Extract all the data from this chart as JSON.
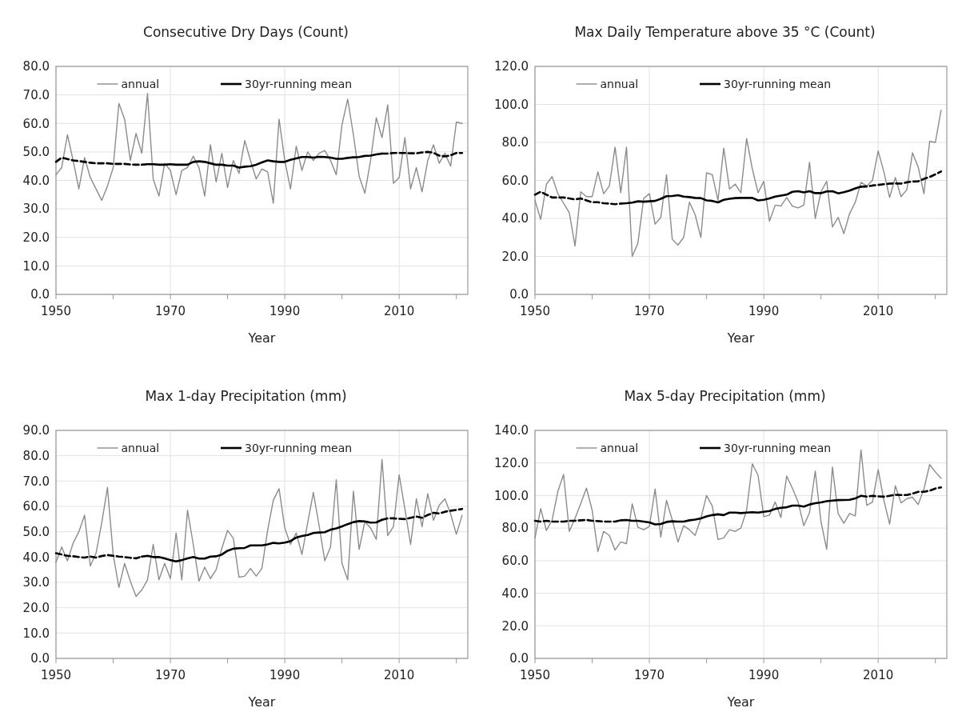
{
  "chart_data": [
    {
      "type": "line",
      "title": "Consecutive Dry Days (Count)",
      "xlabel": "Year",
      "legend": "top",
      "grid": true,
      "line_style": "solid",
      "marker": "none",
      "xlim": [
        1950,
        2022
      ],
      "xticks": [
        1950,
        {
          "value": 1960,
          "label": null
        },
        1970,
        {
          "value": 1980,
          "label": null
        },
        1990,
        {
          "value": 2000,
          "label": null
        },
        2010,
        {
          "value": 2020,
          "label": null
        }
      ],
      "ylim": [
        0,
        80
      ],
      "yticks": [
        {
          "value": 0,
          "label": "0.0"
        },
        {
          "value": 10,
          "label": "10.0"
        },
        {
          "value": 20,
          "label": "20.0"
        },
        {
          "value": 30,
          "label": "30.0"
        },
        {
          "value": 40,
          "label": "40.0"
        },
        {
          "value": 50,
          "label": "50.0"
        },
        {
          "value": 60,
          "label": "60.0"
        },
        {
          "value": 70,
          "label": "70.0"
        },
        {
          "value": 80,
          "label": "80.0"
        }
      ],
      "x": [
        1950,
        1951,
        1952,
        1953,
        1954,
        1955,
        1956,
        1957,
        1958,
        1959,
        1960,
        1961,
        1962,
        1963,
        1964,
        1965,
        1966,
        1967,
        1968,
        1969,
        1970,
        1971,
        1972,
        1973,
        1974,
        1975,
        1976,
        1977,
        1978,
        1979,
        1980,
        1981,
        1982,
        1983,
        1984,
        1985,
        1986,
        1987,
        1988,
        1989,
        1990,
        1991,
        1992,
        1993,
        1994,
        1995,
        1996,
        1997,
        1998,
        1999,
        2000,
        2001,
        2002,
        2003,
        2004,
        2005,
        2006,
        2007,
        2008,
        2009,
        2010,
        2011,
        2012,
        2013,
        2014,
        2015,
        2016,
        2017,
        2018,
        2019,
        2020,
        2021
      ],
      "series": [
        {
          "name": "annual",
          "color": "#8c8c8c",
          "values": [
            42,
            44.5,
            56,
            47,
            37,
            48,
            41,
            37,
            33,
            38,
            44.5,
            67,
            61.5,
            47,
            56.5,
            49.5,
            70.5,
            40.5,
            34.5,
            46,
            43.5,
            35,
            43.5,
            44.5,
            48.5,
            44.5,
            34.5,
            52.5,
            39.5,
            49.5,
            37.5,
            47,
            42.5,
            54,
            47,
            40.5,
            44,
            43,
            32,
            61.5,
            47,
            37,
            52,
            43.5,
            50,
            47,
            49.5,
            50.5,
            47,
            42,
            59.5,
            68.5,
            56,
            41.5,
            35.5,
            47,
            62,
            55,
            66.5,
            39,
            41,
            55,
            37,
            44.5,
            36,
            47,
            52.5,
            46,
            49.5,
            45,
            60.5,
            60
          ]
        },
        {
          "name": "30yr-running mean",
          "color": "#000000",
          "x": [
            1965,
            1966,
            1967,
            1968,
            1969,
            1970,
            1971,
            1972,
            1973,
            1974,
            1975,
            1976,
            1977,
            1978,
            1979,
            1980,
            1981,
            1982,
            1983,
            1984,
            1985,
            1986,
            1987,
            1988,
            1989,
            1990,
            1991,
            1992,
            1993,
            1994,
            1995,
            1996,
            1997,
            1998,
            1999,
            2000,
            2001,
            2002,
            2003,
            2004,
            2005,
            2006,
            2007
          ],
          "values": [
            45.5,
            45.7,
            45.7,
            45.5,
            45.5,
            45.7,
            45.5,
            45.5,
            45.5,
            46.5,
            46.7,
            46.5,
            46,
            45.5,
            45.5,
            45.2,
            45.2,
            44.5,
            44.8,
            45,
            45.5,
            46.3,
            47,
            46.7,
            46.5,
            46.5,
            47.2,
            47.7,
            48.2,
            48.2,
            48,
            48.3,
            48.2,
            48,
            47.6,
            47.6,
            47.9,
            48.1,
            48.2,
            48.6,
            48.7,
            49.1,
            49.4
          ]
        },
        {
          "color": "#000000",
          "line_style": "dashed",
          "x": [
            1950,
            1951,
            1952,
            1953,
            1954,
            1955,
            1956,
            1957,
            1958,
            1959,
            1960,
            1961,
            1962,
            1963,
            1964,
            1965
          ],
          "values": [
            46.5,
            48,
            47.5,
            47,
            46.8,
            46.5,
            46.2,
            46,
            46,
            46,
            45.8,
            45.8,
            45.8,
            45.6,
            45.5,
            45.5
          ]
        },
        {
          "color": "#000000",
          "line_style": "dashed",
          "x": [
            2007,
            2008,
            2009,
            2010,
            2011,
            2012,
            2013,
            2014,
            2015,
            2016,
            2017,
            2018,
            2019,
            2020,
            2021
          ],
          "values": [
            49.4,
            49.4,
            49.6,
            49.6,
            49.6,
            49.5,
            49.5,
            49.8,
            50,
            49.7,
            48.7,
            48.4,
            48.8,
            49.6,
            49.6
          ]
        }
      ]
    },
    {
      "type": "line",
      "title": "Max Daily Temperature above 35 °C (Count)",
      "xlabel": "Year",
      "legend": "top",
      "grid": true,
      "line_style": "solid",
      "marker": "none",
      "xlim": [
        1950,
        2022
      ],
      "xticks": [
        1950,
        {
          "value": 1960,
          "label": null
        },
        1970,
        {
          "value": 1980,
          "label": null
        },
        1990,
        {
          "value": 2000,
          "label": null
        },
        2010,
        {
          "value": 2020,
          "label": null
        }
      ],
      "ylim": [
        0,
        120
      ],
      "yticks": [
        {
          "value": 0,
          "label": "0.0"
        },
        {
          "value": 20,
          "label": "20.0"
        },
        {
          "value": 40,
          "label": "40.0"
        },
        {
          "value": 60,
          "label": "60.0"
        },
        {
          "value": 80,
          "label": "80.0"
        },
        {
          "value": 100,
          "label": "100.0"
        },
        {
          "value": 120,
          "label": "120.0"
        }
      ],
      "x": [
        1950,
        1951,
        1952,
        1953,
        1954,
        1955,
        1956,
        1957,
        1958,
        1959,
        1960,
        1961,
        1962,
        1963,
        1964,
        1965,
        1966,
        1967,
        1968,
        1969,
        1970,
        1971,
        1972,
        1973,
        1974,
        1975,
        1976,
        1977,
        1978,
        1979,
        1980,
        1981,
        1982,
        1983,
        1984,
        1985,
        1986,
        1987,
        1988,
        1989,
        1990,
        1991,
        1992,
        1993,
        1994,
        1995,
        1996,
        1997,
        1998,
        1999,
        2000,
        2001,
        2002,
        2003,
        2004,
        2005,
        2006,
        2007,
        2008,
        2009,
        2010,
        2011,
        2012,
        2013,
        2014,
        2015,
        2016,
        2017,
        2018,
        2019,
        2020,
        2021
      ],
      "series": [
        {
          "name": "annual",
          "color": "#8c8c8c",
          "values": [
            49.5,
            39.5,
            58,
            62,
            53,
            48,
            43,
            25.5,
            54,
            51.5,
            51.5,
            64.5,
            53,
            57,
            77.5,
            53.5,
            77.5,
            20,
            27,
            50.5,
            53,
            37,
            40.5,
            63,
            29,
            26,
            30,
            48.5,
            42,
            30,
            64,
            63,
            49.5,
            77,
            55.5,
            58,
            53.5,
            82,
            66,
            53.5,
            59.5,
            38.5,
            47,
            46.5,
            51,
            46.5,
            45.5,
            47,
            69.5,
            40,
            54,
            59.5,
            35.5,
            40.5,
            32,
            42.5,
            48.5,
            59,
            57,
            60,
            75.5,
            64.5,
            51,
            61.5,
            51.5,
            55,
            74.5,
            67,
            53,
            80.5,
            80,
            97
          ]
        },
        {
          "name": "30yr-running mean",
          "color": "#000000",
          "x": [
            1965,
            1966,
            1967,
            1968,
            1969,
            1970,
            1971,
            1972,
            1973,
            1974,
            1975,
            1976,
            1977,
            1978,
            1979,
            1980,
            1981,
            1982,
            1983,
            1984,
            1985,
            1986,
            1987,
            1988,
            1989,
            1990,
            1991,
            1992,
            1993,
            1994,
            1995,
            1996,
            1997,
            1998,
            1999,
            2000,
            2001,
            2002,
            2003,
            2004,
            2005,
            2006,
            2007
          ],
          "values": [
            47.8,
            48,
            48.3,
            49,
            48.8,
            49,
            49.2,
            50.3,
            51.7,
            51.8,
            52.2,
            51.5,
            51.2,
            50.8,
            50.7,
            49.5,
            49.2,
            48.4,
            49.8,
            50.3,
            50.7,
            50.8,
            50.8,
            50.8,
            49.5,
            49.8,
            50.5,
            51.5,
            52,
            52.5,
            54,
            54.3,
            53.7,
            54.3,
            53.3,
            53.3,
            54.2,
            54.3,
            53.2,
            53.8,
            54.6,
            55.8,
            56.7
          ]
        },
        {
          "color": "#000000",
          "line_style": "dashed",
          "x": [
            1950,
            1951,
            1952,
            1953,
            1954,
            1955,
            1956,
            1957,
            1958,
            1959,
            1960,
            1961,
            1962,
            1963,
            1964,
            1965
          ],
          "values": [
            52.5,
            54,
            52.5,
            51,
            51,
            51,
            50.5,
            50,
            50.5,
            49.5,
            48.5,
            48.5,
            48,
            47.8,
            47.5,
            47.8
          ]
        },
        {
          "color": "#000000",
          "line_style": "dashed",
          "x": [
            2007,
            2008,
            2009,
            2010,
            2011,
            2012,
            2013,
            2014,
            2015,
            2016,
            2017,
            2018,
            2019,
            2020,
            2021
          ],
          "values": [
            56.7,
            56.8,
            57.3,
            57.6,
            58,
            58.3,
            58.4,
            58.3,
            59,
            59.4,
            59.5,
            60.8,
            61.8,
            63.2,
            64.7
          ]
        }
      ]
    },
    {
      "type": "line",
      "title": "Max 1-day Precipitation (mm)",
      "xlabel": "Year",
      "legend": "top",
      "grid": true,
      "line_style": "solid",
      "marker": "none",
      "xlim": [
        1950,
        2022
      ],
      "xticks": [
        1950,
        {
          "value": 1960,
          "label": null
        },
        1970,
        {
          "value": 1980,
          "label": null
        },
        1990,
        {
          "value": 2000,
          "label": null
        },
        2010,
        {
          "value": 2020,
          "label": null
        }
      ],
      "ylim": [
        0,
        90
      ],
      "yticks": [
        {
          "value": 0,
          "label": "0.0"
        },
        {
          "value": 10,
          "label": "10.0"
        },
        {
          "value": 20,
          "label": "20.0"
        },
        {
          "value": 30,
          "label": "30.0"
        },
        {
          "value": 40,
          "label": "40.0"
        },
        {
          "value": 50,
          "label": "50.0"
        },
        {
          "value": 60,
          "label": "60.0"
        },
        {
          "value": 70,
          "label": "70.0"
        },
        {
          "value": 80,
          "label": "80.0"
        },
        {
          "value": 90,
          "label": "90.0"
        }
      ],
      "x": [
        1950,
        1951,
        1952,
        1953,
        1954,
        1955,
        1956,
        1957,
        1958,
        1959,
        1960,
        1961,
        1962,
        1963,
        1964,
        1965,
        1966,
        1967,
        1968,
        1969,
        1970,
        1971,
        1972,
        1973,
        1974,
        1975,
        1976,
        1977,
        1978,
        1979,
        1980,
        1981,
        1982,
        1983,
        1984,
        1985,
        1986,
        1987,
        1988,
        1989,
        1990,
        1991,
        1992,
        1993,
        1994,
        1995,
        1996,
        1997,
        1998,
        1999,
        2000,
        2001,
        2002,
        2003,
        2004,
        2005,
        2006,
        2007,
        2008,
        2009,
        2010,
        2011,
        2012,
        2013,
        2014,
        2015,
        2016,
        2017,
        2018,
        2019,
        2020,
        2021
      ],
      "series": [
        {
          "name": "annual",
          "color": "#8c8c8c",
          "values": [
            38,
            44,
            38.5,
            45.5,
            50,
            56.5,
            36.5,
            41.5,
            53.5,
            67.5,
            41,
            28,
            37.5,
            30.5,
            24.5,
            27,
            31,
            45,
            31,
            37.5,
            31.5,
            49.5,
            31,
            58.5,
            45,
            30.5,
            36,
            31.5,
            35,
            43.5,
            50.5,
            47.5,
            32,
            32.5,
            35.5,
            32.5,
            35.5,
            50.5,
            62.5,
            67,
            51.5,
            45,
            49.5,
            41,
            53.5,
            65.5,
            52.5,
            38.5,
            44,
            70.5,
            37.5,
            31,
            66,
            43,
            54,
            51.5,
            47,
            78.5,
            48.5,
            52,
            72.5,
            59,
            45,
            63,
            52,
            65,
            54.5,
            60.5,
            63,
            57,
            49,
            56.5
          ]
        },
        {
          "name": "30yr-running mean",
          "color": "#000000",
          "x": [
            1965,
            1966,
            1967,
            1968,
            1969,
            1970,
            1971,
            1972,
            1973,
            1974,
            1975,
            1976,
            1977,
            1978,
            1979,
            1980,
            1981,
            1982,
            1983,
            1984,
            1985,
            1986,
            1987,
            1988,
            1989,
            1990,
            1991,
            1992,
            1993,
            1994,
            1995,
            1996,
            1997,
            1998,
            1999,
            2000,
            2001,
            2002,
            2003,
            2004,
            2005,
            2006,
            2007
          ],
          "values": [
            40.2,
            40.5,
            40,
            40,
            39.5,
            38.8,
            38.3,
            38.8,
            39.5,
            40,
            39.4,
            39.4,
            40.2,
            40.3,
            41,
            42.5,
            43.3,
            43.5,
            43.6,
            44.6,
            44.6,
            44.6,
            45,
            45.6,
            45.4,
            45.7,
            46.3,
            47.7,
            48.3,
            48.7,
            49.5,
            49.7,
            49.8,
            50.8,
            51.3,
            52.1,
            53,
            53.8,
            54.2,
            54.1,
            53.6,
            53.7,
            54.7
          ]
        },
        {
          "color": "#000000",
          "line_style": "dashed",
          "x": [
            1950,
            1951,
            1952,
            1953,
            1954,
            1955,
            1956,
            1957,
            1958,
            1959,
            1960,
            1961,
            1962,
            1963,
            1964,
            1965
          ],
          "values": [
            41.5,
            41,
            40.5,
            40.3,
            40,
            39.8,
            40.2,
            39.8,
            40.4,
            40.8,
            40.5,
            40.2,
            40,
            39.7,
            39.5,
            40.2
          ]
        },
        {
          "color": "#000000",
          "line_style": "dashed",
          "x": [
            2007,
            2008,
            2009,
            2010,
            2011,
            2012,
            2013,
            2014,
            2015,
            2016,
            2017,
            2018,
            2019,
            2020,
            2021
          ],
          "values": [
            54.7,
            55.3,
            55.3,
            55.1,
            55,
            55.5,
            56,
            55.5,
            56.6,
            57.5,
            57.2,
            57.9,
            58.3,
            58.6,
            59
          ]
        }
      ]
    },
    {
      "type": "line",
      "title": "Max 5-day Precipitation (mm)",
      "xlabel": "Year",
      "legend": "top",
      "grid": true,
      "line_style": "solid",
      "marker": "none",
      "xlim": [
        1950,
        2022
      ],
      "xticks": [
        1950,
        {
          "value": 1960,
          "label": null
        },
        1970,
        {
          "value": 1980,
          "label": null
        },
        1990,
        {
          "value": 2000,
          "label": null
        },
        2010,
        {
          "value": 2020,
          "label": null
        }
      ],
      "ylim": [
        0,
        140
      ],
      "yticks": [
        {
          "value": 0,
          "label": "0.0"
        },
        {
          "value": 20,
          "label": "20.0"
        },
        {
          "value": 40,
          "label": "40.0"
        },
        {
          "value": 60,
          "label": "60.0"
        },
        {
          "value": 80,
          "label": "80.0"
        },
        {
          "value": 100,
          "label": "100.0"
        },
        {
          "value": 120,
          "label": "120.0"
        },
        {
          "value": 140,
          "label": "140.0"
        }
      ],
      "x": [
        1950,
        1951,
        1952,
        1953,
        1954,
        1955,
        1956,
        1957,
        1958,
        1959,
        1960,
        1961,
        1962,
        1963,
        1964,
        1965,
        1966,
        1967,
        1968,
        1969,
        1970,
        1971,
        1972,
        1973,
        1974,
        1975,
        1976,
        1977,
        1978,
        1979,
        1980,
        1981,
        1982,
        1983,
        1984,
        1985,
        1986,
        1987,
        1988,
        1989,
        1990,
        1991,
        1992,
        1993,
        1994,
        1995,
        1996,
        1997,
        1998,
        1999,
        2000,
        2001,
        2002,
        2003,
        2004,
        2005,
        2006,
        2007,
        2008,
        2009,
        2010,
        2011,
        2012,
        2013,
        2014,
        2015,
        2016,
        2017,
        2018,
        2019,
        2020,
        2021
      ],
      "series": [
        {
          "name": "annual",
          "color": "#8c8c8c",
          "values": [
            74,
            92,
            78.5,
            85,
            102.5,
            113,
            78,
            86,
            95,
            104.5,
            91,
            65.5,
            78,
            75.5,
            66.5,
            71.5,
            70.5,
            95,
            80.5,
            79,
            81,
            104,
            74.5,
            97,
            85,
            71.5,
            81.5,
            79,
            75.5,
            86,
            100,
            93.5,
            73,
            74,
            79,
            78,
            80,
            91,
            119.5,
            112.5,
            87,
            88,
            96,
            86.5,
            112,
            104.5,
            96,
            81.5,
            89.5,
            115,
            84,
            67,
            117.5,
            89,
            83,
            89,
            87.5,
            128,
            94,
            96,
            116,
            97,
            82.5,
            106,
            95.5,
            98,
            99,
            94.5,
            104,
            119,
            114.5,
            110.5
          ]
        },
        {
          "name": "30yr-running mean",
          "color": "#000000",
          "x": [
            1965,
            1966,
            1967,
            1968,
            1969,
            1970,
            1971,
            1972,
            1973,
            1974,
            1975,
            1976,
            1977,
            1978,
            1979,
            1980,
            1981,
            1982,
            1983,
            1984,
            1985,
            1986,
            1987,
            1988,
            1989,
            1990,
            1991,
            1992,
            1993,
            1994,
            1995,
            1996,
            1997,
            1998,
            1999,
            2000,
            2001,
            2002,
            2003,
            2004,
            2005,
            2006,
            2007
          ],
          "values": [
            84.8,
            85,
            84.5,
            84.5,
            84,
            83.5,
            82.3,
            82.5,
            83.8,
            84.2,
            84,
            84,
            84.8,
            85.2,
            86,
            87.2,
            88,
            88.5,
            88,
            89.5,
            89.5,
            89.2,
            89.5,
            89.8,
            89.5,
            90,
            90.5,
            91.8,
            92.5,
            92.8,
            93.8,
            93.8,
            93.2,
            94.5,
            95.3,
            95.8,
            96.5,
            96.9,
            97.2,
            97.3,
            97.4,
            98.3,
            99.8
          ]
        },
        {
          "color": "#000000",
          "line_style": "dashed",
          "x": [
            1950,
            1951,
            1952,
            1953,
            1954,
            1955,
            1956,
            1957,
            1958,
            1959,
            1960,
            1961,
            1962,
            1963,
            1964,
            1965
          ],
          "values": [
            84.5,
            84,
            84.5,
            84,
            84,
            84,
            84.5,
            84.5,
            84.8,
            85,
            84.5,
            84.3,
            84,
            84,
            84,
            84.8
          ]
        },
        {
          "color": "#000000",
          "line_style": "dashed",
          "x": [
            2007,
            2008,
            2009,
            2010,
            2011,
            2012,
            2013,
            2014,
            2015,
            2016,
            2017,
            2018,
            2019,
            2020,
            2021
          ],
          "values": [
            99.8,
            99.3,
            99.8,
            99.5,
            99.3,
            99.8,
            100.5,
            100.3,
            100.3,
            101.2,
            102.3,
            102.3,
            103,
            104.3,
            105
          ]
        }
      ]
    }
  ]
}
